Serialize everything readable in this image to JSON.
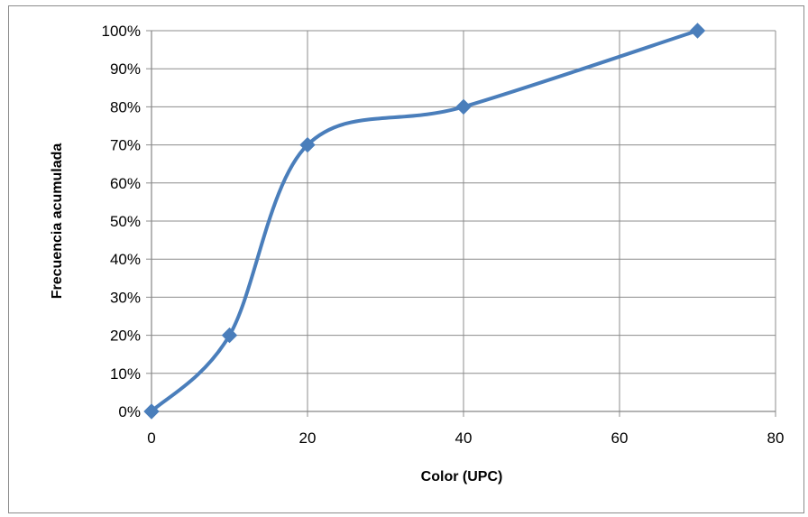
{
  "chart_data": {
    "type": "line",
    "title": "",
    "xlabel": "Color (UPC)",
    "ylabel": "Frecuencia acumulada",
    "xlim": [
      0,
      80
    ],
    "ylim": [
      0,
      1
    ],
    "x_ticks": [
      "0",
      "20",
      "40",
      "60",
      "80"
    ],
    "y_ticks": [
      "0%",
      "10%",
      "20%",
      "30%",
      "40%",
      "50%",
      "60%",
      "70%",
      "80%",
      "90%",
      "100%"
    ],
    "grid": true,
    "smooth": true,
    "marker": "diamond",
    "line_color": "#4a7ebb",
    "series": [
      {
        "x": [
          0,
          10,
          20,
          40,
          70
        ],
        "y": [
          0.0,
          0.2,
          0.7,
          0.8,
          1.0
        ]
      }
    ]
  }
}
